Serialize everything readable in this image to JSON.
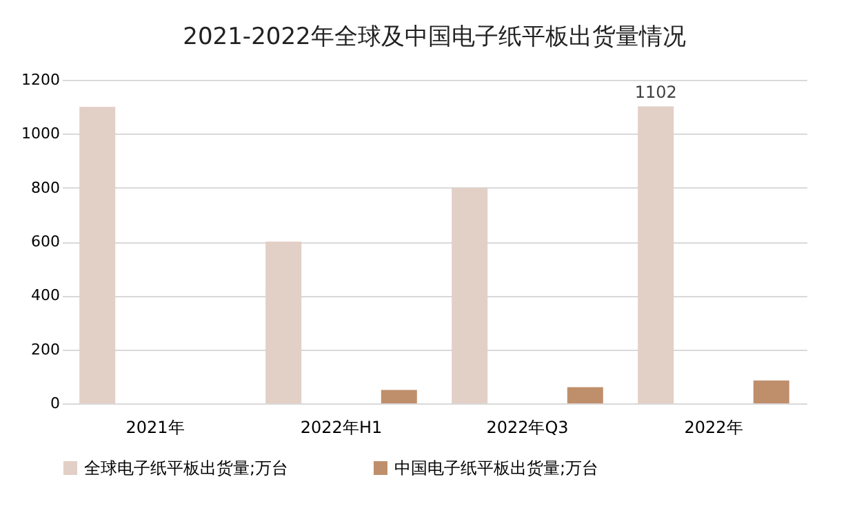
{
  "chart_data": {
    "type": "bar",
    "title": "2021-2022年全球及中国电子纸平板出货量情况",
    "categories": [
      "2021年",
      "2022年H1",
      "2022年Q3",
      "2022年"
    ],
    "series": [
      {
        "name": "全球电子纸平板出货量;万台",
        "color": "#e2cfc6",
        "values": [
          1100,
          600,
          800,
          1102
        ],
        "value_labels": [
          null,
          null,
          null,
          "1102"
        ]
      },
      {
        "name": "中国电子纸平板出货量;万台",
        "color": "#bf8f6b",
        "values": [
          null,
          50,
          60,
          85
        ]
      }
    ],
    "ylim": [
      0,
      1200
    ],
    "yticks": [
      0,
      200,
      400,
      600,
      800,
      1000,
      1200
    ],
    "grid": "y",
    "legend": "bottom"
  }
}
